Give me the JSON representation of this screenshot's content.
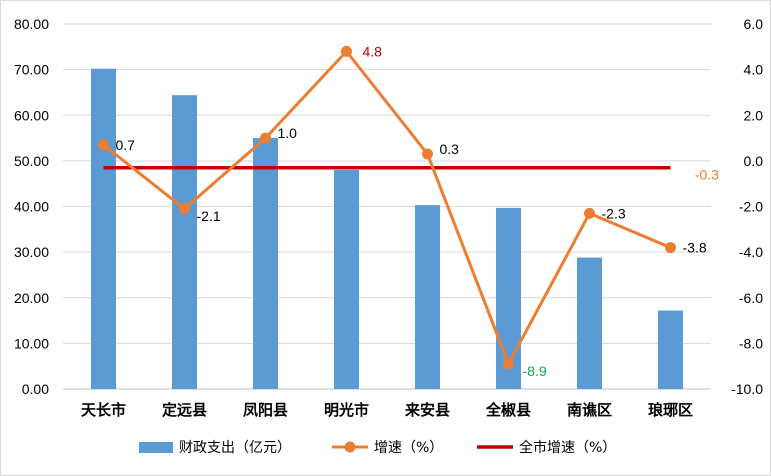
{
  "chart_data": {
    "type": "bar",
    "categories": [
      "天长市",
      "定远县",
      "凤阳县",
      "明光市",
      "来安县",
      "全椒县",
      "南谯区",
      "琅琊区"
    ],
    "series": [
      {
        "name": "财政支出（亿元）",
        "type": "bar",
        "axis": "left",
        "color": "#5b9bd5",
        "values": [
          70.2,
          64.4,
          55.0,
          48.0,
          40.3,
          39.7,
          28.8,
          17.2
        ]
      },
      {
        "name": "增速（%）",
        "type": "line",
        "axis": "right",
        "color": "#ed7d31",
        "values": [
          0.7,
          -2.1,
          1.0,
          4.8,
          0.3,
          -8.9,
          -2.3,
          -3.8
        ]
      },
      {
        "name": "全市增速（%）",
        "type": "line",
        "axis": "right",
        "color": "#c00000",
        "values": [
          -0.3,
          -0.3,
          -0.3,
          -0.3,
          -0.3,
          -0.3,
          -0.3,
          -0.3
        ]
      }
    ],
    "data_labels": [
      "0.7",
      "-2.1",
      "1.0",
      "4.8",
      "0.3",
      "-8.9",
      "-2.3",
      "-3.8"
    ],
    "data_label_colors": [
      "#000000",
      "#000000",
      "#000000",
      "#c00000",
      "#000000",
      "#00b050",
      "#000000",
      "#000000"
    ],
    "city_label": "-0.3",
    "city_label_color": "#ed7d31",
    "y_left": {
      "ylim": [
        0,
        80
      ],
      "ticks": [
        "0.00",
        "10.00",
        "20.00",
        "30.00",
        "40.00",
        "50.00",
        "60.00",
        "70.00",
        "80.00"
      ]
    },
    "y_right": {
      "ylim": [
        -10,
        6
      ],
      "ticks": [
        "-10.0",
        "-8.0",
        "-6.0",
        "-4.0",
        "-2.0",
        "0.0",
        "2.0",
        "4.0",
        "6.0"
      ]
    },
    "grid": true,
    "legend_position": "bottom"
  }
}
